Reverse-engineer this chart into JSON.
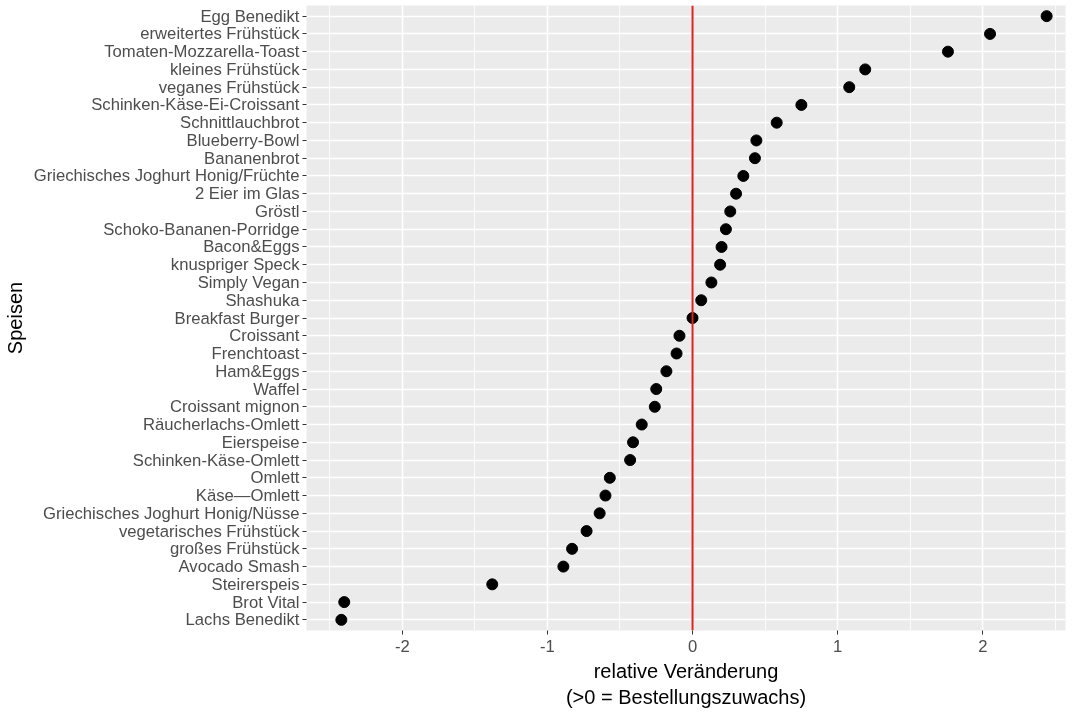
{
  "chart_data": {
    "type": "scatter",
    "orientation": "horizontal",
    "xlabel": "relative Veränderung\n(>0 = Bestellungszuwachs)",
    "ylabel": "Speisen",
    "categories": [
      "Egg Benedikt",
      "erweitertes Frühstück",
      "Tomaten-Mozzarella-Toast",
      "kleines Frühstück",
      "veganes Frühstück",
      "Schinken-Käse-Ei-Croissant",
      "Schnittlauchbrot",
      "Blueberry-Bowl",
      "Bananenbrot",
      "Griechisches Joghurt Honig/Früchte",
      "2 Eier im Glas",
      "Gröstl",
      "Schoko-Bananen-Porridge",
      "Bacon&Eggs",
      "knuspriger Speck",
      "Simply Vegan",
      "Shashuka",
      "Breakfast Burger",
      "Croissant",
      "Frenchtoast",
      "Ham&Eggs",
      "Waffel",
      "Croissant mignon",
      "Räucherlachs-Omlett",
      "Eierspeise",
      "Schinken-Käse-Omlett",
      "Omlett",
      "Käse—Omlett",
      "Griechisches Joghurt Honig/Nüsse",
      "vegetarisches Frühstück",
      "großes Frühstück",
      "Avocado Smash",
      "Steirerspeis",
      "Brot Vital",
      "Lachs Benedikt"
    ],
    "series": [
      {
        "color": "#000000",
        "values": [
          2.44,
          2.05,
          1.76,
          1.19,
          1.08,
          0.75,
          0.58,
          0.44,
          0.43,
          0.35,
          0.3,
          0.26,
          0.23,
          0.2,
          0.19,
          0.13,
          0.06,
          0.0,
          -0.09,
          -0.11,
          -0.18,
          -0.25,
          -0.26,
          -0.35,
          -0.41,
          -0.43,
          -0.57,
          -0.6,
          -0.64,
          -0.73,
          -0.83,
          -0.89,
          -1.38,
          -2.4,
          -2.42
        ]
      }
    ],
    "xlim": [
      -2.66,
      2.57
    ],
    "xticks": [
      -2,
      -1,
      0,
      1,
      2
    ],
    "ref_lines": [
      {
        "axis": "x",
        "value": 0,
        "color": "#dd2222"
      }
    ],
    "grid": true,
    "marker": "circle"
  }
}
